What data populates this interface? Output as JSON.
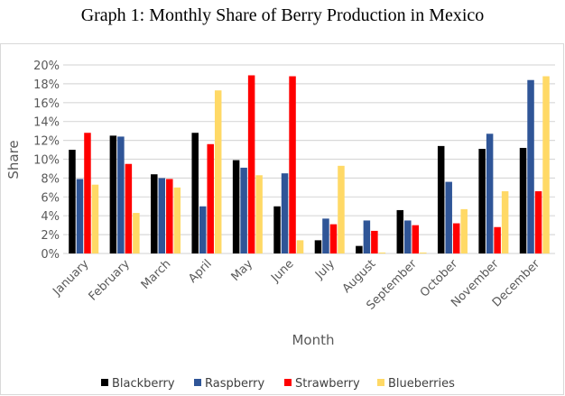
{
  "chart_data": {
    "type": "bar",
    "title": "Graph 1: Monthly Share of Berry Production in Mexico",
    "xlabel": "Month",
    "ylabel": "Share",
    "ylim": [
      0,
      20
    ],
    "yticks": [
      "0%",
      "2%",
      "4%",
      "6%",
      "8%",
      "10%",
      "12%",
      "14%",
      "16%",
      "18%",
      "20%"
    ],
    "grid": true,
    "legend_position": "bottom",
    "categories": [
      "January",
      "February",
      "March",
      "April",
      "May",
      "June",
      "July",
      "August",
      "September",
      "October",
      "November",
      "December"
    ],
    "series": [
      {
        "name": "Blackberry",
        "color": "#000000",
        "values": [
          11.0,
          12.5,
          8.4,
          12.8,
          9.9,
          5.0,
          1.4,
          0.8,
          4.6,
          11.4,
          11.1,
          11.2
        ]
      },
      {
        "name": "Raspberry",
        "color": "#2f5597",
        "values": [
          7.9,
          12.4,
          8.0,
          5.0,
          9.1,
          8.5,
          3.7,
          3.5,
          3.5,
          7.6,
          12.7,
          18.4
        ]
      },
      {
        "name": "Strawberry",
        "color": "#ff0000",
        "values": [
          12.8,
          9.5,
          7.9,
          11.6,
          18.9,
          18.8,
          3.1,
          2.4,
          3.0,
          3.2,
          2.8,
          6.6
        ]
      },
      {
        "name": "Blueberries",
        "color": "#ffd966",
        "values": [
          7.3,
          4.3,
          7.0,
          17.3,
          8.3,
          1.4,
          9.3,
          0.1,
          0.1,
          4.7,
          6.6,
          18.8
        ]
      }
    ]
  }
}
